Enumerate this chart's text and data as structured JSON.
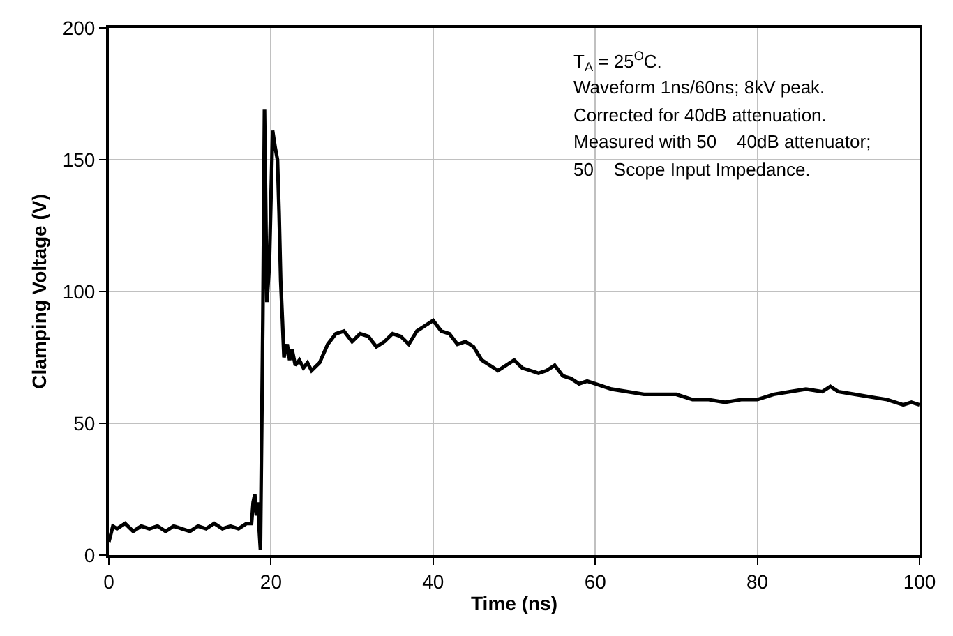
{
  "chart_data": {
    "type": "line",
    "xlabel": "Time (ns)",
    "ylabel": "Clamping Voltage (V)",
    "annotations": [
      "T$_{A}$ = 25$^{O}$C.",
      "Waveform 1ns/60ns; 8kV peak.",
      "Corrected for 40dB attenuation.",
      "Measured with 50    40dB attenuator;",
      "50    Scope Input Impedance."
    ],
    "xlim": [
      0,
      100
    ],
    "xticks": [
      0,
      20,
      40,
      60,
      80,
      100
    ],
    "ylim": [
      0,
      200
    ],
    "yticks": [
      0,
      50,
      100,
      150,
      200
    ],
    "grid": true,
    "marker": "none",
    "line_style": "solid",
    "series": [
      {
        "color": "#000000",
        "x": [
          0,
          0.5,
          1,
          2,
          3,
          4,
          5,
          6,
          7,
          8,
          9,
          10,
          11,
          12,
          13,
          14,
          15,
          16,
          17,
          17.6,
          17.8,
          18.0,
          18.2,
          18.4,
          18.5,
          18.7,
          19.0,
          19.2,
          19.4,
          19.5,
          19.8,
          20.2,
          20.5,
          20.8,
          21.0,
          21.2,
          21.4,
          21.6,
          22,
          22.3,
          22.6,
          23,
          23.5,
          24,
          24.5,
          25,
          26,
          27,
          28,
          29,
          30,
          31,
          32,
          33,
          34,
          35,
          36,
          37,
          38,
          39,
          40,
          41,
          42,
          43,
          44,
          45,
          46,
          47,
          48,
          49,
          50,
          51,
          52,
          53,
          54,
          55,
          56,
          57,
          58,
          59,
          60,
          62,
          64,
          66,
          68,
          70,
          72,
          74,
          76,
          78,
          80,
          82,
          84,
          86,
          88,
          89,
          90,
          92,
          94,
          96,
          98,
          99,
          100
        ],
        "values": [
          5,
          11,
          10,
          12,
          9,
          11,
          10,
          11,
          9,
          11,
          10,
          9,
          11,
          10,
          12,
          10,
          11,
          10,
          12,
          12,
          20,
          23,
          15,
          20,
          12,
          2,
          90,
          169,
          120,
          96,
          110,
          161,
          155,
          150,
          130,
          104,
          90,
          75,
          80,
          74,
          78,
          72,
          74,
          71,
          73,
          70,
          73,
          80,
          84,
          85,
          81,
          84,
          83,
          79,
          81,
          84,
          83,
          80,
          85,
          87,
          89,
          85,
          84,
          80,
          81,
          79,
          74,
          72,
          70,
          72,
          74,
          71,
          70,
          69,
          70,
          72,
          68,
          67,
          65,
          66,
          65,
          63,
          62,
          61,
          61,
          61,
          59,
          59,
          58,
          59,
          59,
          61,
          62,
          63,
          62,
          64,
          62,
          61,
          60,
          59,
          57,
          58,
          57
        ]
      }
    ]
  }
}
